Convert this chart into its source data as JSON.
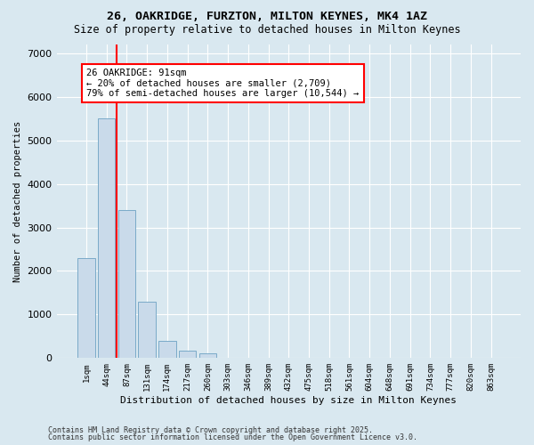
{
  "title1": "26, OAKRIDGE, FURZTON, MILTON KEYNES, MK4 1AZ",
  "title2": "Size of property relative to detached houses in Milton Keynes",
  "xlabel": "Distribution of detached houses by size in Milton Keynes",
  "ylabel": "Number of detached properties",
  "bin_labels": [
    "1sqm",
    "44sqm",
    "87sqm",
    "131sqm",
    "174sqm",
    "217sqm",
    "260sqm",
    "303sqm",
    "346sqm",
    "389sqm",
    "432sqm",
    "475sqm",
    "518sqm",
    "561sqm",
    "604sqm",
    "648sqm",
    "691sqm",
    "734sqm",
    "777sqm",
    "820sqm",
    "863sqm"
  ],
  "bar_values": [
    2300,
    5500,
    3400,
    1300,
    400,
    175,
    100,
    0,
    0,
    0,
    0,
    0,
    0,
    0,
    0,
    0,
    0,
    0,
    0,
    0,
    0
  ],
  "bar_color": "#c9daea",
  "bar_edge_color": "#7aaac8",
  "vline_color": "red",
  "vline_x": 1.5,
  "annotation_text": "26 OAKRIDGE: 91sqm\n← 20% of detached houses are smaller (2,709)\n79% of semi-detached houses are larger (10,544) →",
  "ylim": [
    0,
    7200
  ],
  "yticks": [
    0,
    1000,
    2000,
    3000,
    4000,
    5000,
    6000,
    7000
  ],
  "footer1": "Contains HM Land Registry data © Crown copyright and database right 2025.",
  "footer2": "Contains public sector information licensed under the Open Government Licence v3.0.",
  "background_color": "#d9e8f0",
  "grid_color": "white"
}
